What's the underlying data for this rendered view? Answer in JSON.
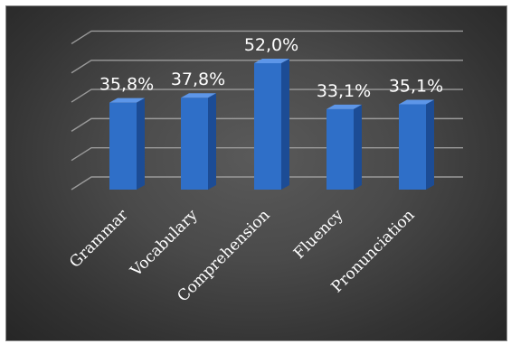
{
  "chart_data": {
    "type": "bar",
    "categories": [
      "Grammar",
      "Vocabulary",
      "Comprehension",
      "Fluency",
      "Pronunciation"
    ],
    "values": [
      35.8,
      37.8,
      52.0,
      33.1,
      35.1
    ],
    "data_labels": [
      "35,8%",
      "37,8%",
      "52,0%",
      "33,1%",
      "35,1%"
    ],
    "ylim": [
      0,
      60
    ],
    "grid": true,
    "legend": false,
    "colors": {
      "bar": "#2f6fc8",
      "bar_side": "#1c4c95",
      "bar_top": "#5d96e8",
      "background": "#444444"
    }
  }
}
